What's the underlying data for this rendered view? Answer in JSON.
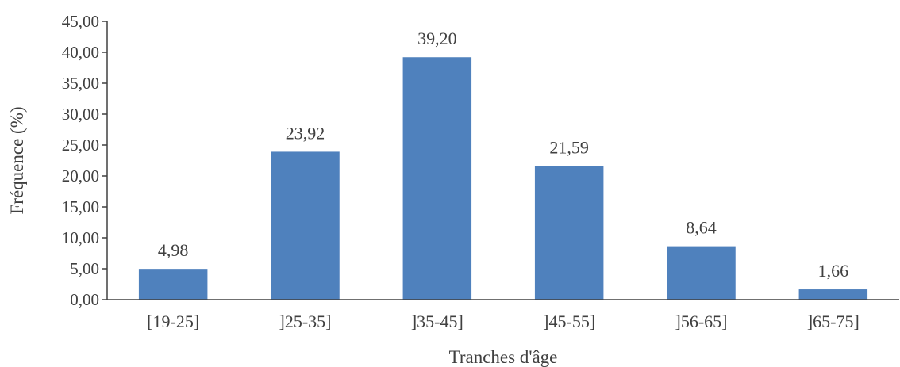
{
  "chart_data": {
    "type": "bar",
    "title": "",
    "xlabel": "Tranches d'âge",
    "ylabel": "Fréquence (%)",
    "categories": [
      "[19-25]",
      "]25-35]",
      "]35-45]",
      "]45-55]",
      "]56-65]",
      "]65-75]"
    ],
    "values": [
      4.98,
      23.92,
      39.2,
      21.59,
      8.64,
      1.66
    ],
    "value_labels": [
      "4,98",
      "23,92",
      "39,20",
      "21,59",
      "8,64",
      "1,66"
    ],
    "ylim": [
      0,
      45
    ],
    "yticks": [
      0,
      5,
      10,
      15,
      20,
      25,
      30,
      35,
      40,
      45
    ],
    "ytick_labels": [
      "0,00",
      "5,00",
      "10,00",
      "15,00",
      "20,00",
      "25,00",
      "30,00",
      "35,00",
      "40,00",
      "45,00"
    ],
    "grid": false,
    "legend": "none",
    "bar_color": "#4F81BD",
    "axis_color": "#404040"
  }
}
